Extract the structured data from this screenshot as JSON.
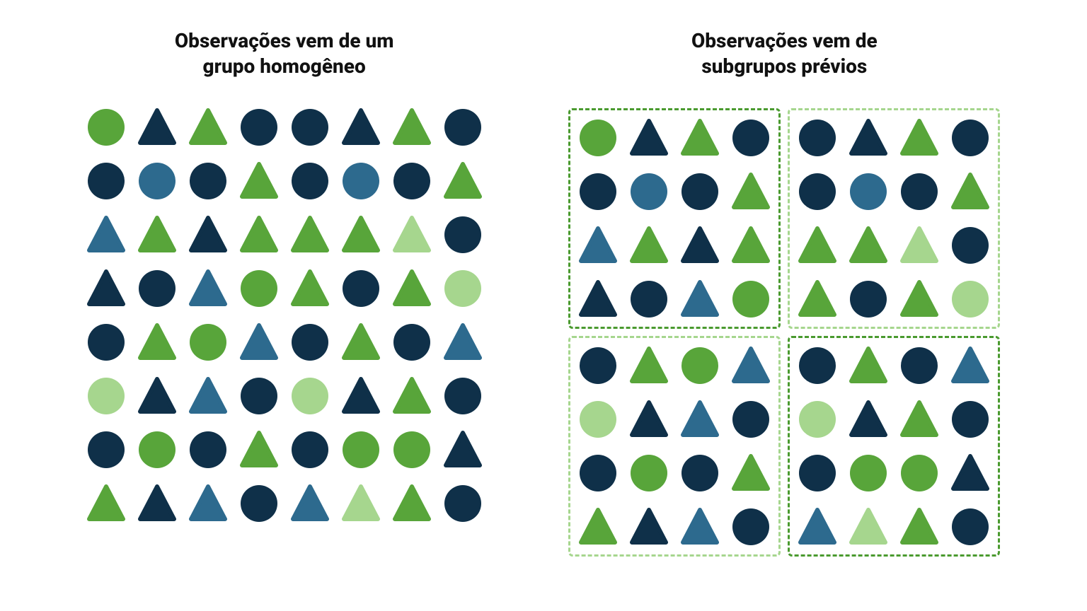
{
  "colors": {
    "dark_navy": "#0f3049",
    "mid_blue": "#2d6a8e",
    "green": "#58a53a",
    "light_green": "#a6d68e"
  },
  "left": {
    "title": "Observações vem de um\ngrupo homogêneo",
    "cols": 8,
    "items": [
      {
        "shape": "circle",
        "color": "green"
      },
      {
        "shape": "triangle",
        "color": "dark_navy"
      },
      {
        "shape": "triangle",
        "color": "green"
      },
      {
        "shape": "circle",
        "color": "dark_navy"
      },
      {
        "shape": "circle",
        "color": "dark_navy"
      },
      {
        "shape": "triangle",
        "color": "dark_navy"
      },
      {
        "shape": "triangle",
        "color": "green"
      },
      {
        "shape": "circle",
        "color": "dark_navy"
      },
      {
        "shape": "circle",
        "color": "dark_navy"
      },
      {
        "shape": "circle",
        "color": "mid_blue"
      },
      {
        "shape": "circle",
        "color": "dark_navy"
      },
      {
        "shape": "triangle",
        "color": "green"
      },
      {
        "shape": "circle",
        "color": "dark_navy"
      },
      {
        "shape": "circle",
        "color": "mid_blue"
      },
      {
        "shape": "circle",
        "color": "dark_navy"
      },
      {
        "shape": "triangle",
        "color": "green"
      },
      {
        "shape": "triangle",
        "color": "mid_blue"
      },
      {
        "shape": "triangle",
        "color": "green"
      },
      {
        "shape": "triangle",
        "color": "dark_navy"
      },
      {
        "shape": "triangle",
        "color": "green"
      },
      {
        "shape": "triangle",
        "color": "green"
      },
      {
        "shape": "triangle",
        "color": "green"
      },
      {
        "shape": "triangle",
        "color": "light_green"
      },
      {
        "shape": "circle",
        "color": "dark_navy"
      },
      {
        "shape": "triangle",
        "color": "dark_navy"
      },
      {
        "shape": "circle",
        "color": "dark_navy"
      },
      {
        "shape": "triangle",
        "color": "mid_blue"
      },
      {
        "shape": "circle",
        "color": "green"
      },
      {
        "shape": "triangle",
        "color": "green"
      },
      {
        "shape": "circle",
        "color": "dark_navy"
      },
      {
        "shape": "triangle",
        "color": "green"
      },
      {
        "shape": "circle",
        "color": "light_green"
      },
      {
        "shape": "circle",
        "color": "dark_navy"
      },
      {
        "shape": "triangle",
        "color": "green"
      },
      {
        "shape": "circle",
        "color": "green"
      },
      {
        "shape": "triangle",
        "color": "mid_blue"
      },
      {
        "shape": "circle",
        "color": "dark_navy"
      },
      {
        "shape": "triangle",
        "color": "green"
      },
      {
        "shape": "circle",
        "color": "dark_navy"
      },
      {
        "shape": "triangle",
        "color": "mid_blue"
      },
      {
        "shape": "circle",
        "color": "light_green"
      },
      {
        "shape": "triangle",
        "color": "dark_navy"
      },
      {
        "shape": "triangle",
        "color": "mid_blue"
      },
      {
        "shape": "circle",
        "color": "dark_navy"
      },
      {
        "shape": "circle",
        "color": "light_green"
      },
      {
        "shape": "triangle",
        "color": "dark_navy"
      },
      {
        "shape": "triangle",
        "color": "green"
      },
      {
        "shape": "circle",
        "color": "dark_navy"
      },
      {
        "shape": "circle",
        "color": "dark_navy"
      },
      {
        "shape": "circle",
        "color": "green"
      },
      {
        "shape": "circle",
        "color": "dark_navy"
      },
      {
        "shape": "triangle",
        "color": "green"
      },
      {
        "shape": "circle",
        "color": "dark_navy"
      },
      {
        "shape": "circle",
        "color": "green"
      },
      {
        "shape": "circle",
        "color": "green"
      },
      {
        "shape": "triangle",
        "color": "dark_navy"
      },
      {
        "shape": "triangle",
        "color": "green"
      },
      {
        "shape": "triangle",
        "color": "dark_navy"
      },
      {
        "shape": "triangle",
        "color": "mid_blue"
      },
      {
        "shape": "circle",
        "color": "dark_navy"
      },
      {
        "shape": "triangle",
        "color": "mid_blue"
      },
      {
        "shape": "triangle",
        "color": "light_green"
      },
      {
        "shape": "triangle",
        "color": "green"
      },
      {
        "shape": "circle",
        "color": "dark_navy"
      }
    ]
  },
  "right": {
    "title": "Observações vem de\nsubgrupos prévios",
    "quad_border_colors": [
      "#4a9a2f",
      "#a6d68e",
      "#a6d68e",
      "#4a9a2f"
    ],
    "quadrants": [
      [
        {
          "shape": "circle",
          "color": "green"
        },
        {
          "shape": "triangle",
          "color": "dark_navy"
        },
        {
          "shape": "triangle",
          "color": "green"
        },
        {
          "shape": "circle",
          "color": "dark_navy"
        },
        {
          "shape": "circle",
          "color": "dark_navy"
        },
        {
          "shape": "circle",
          "color": "mid_blue"
        },
        {
          "shape": "circle",
          "color": "dark_navy"
        },
        {
          "shape": "triangle",
          "color": "green"
        },
        {
          "shape": "triangle",
          "color": "mid_blue"
        },
        {
          "shape": "triangle",
          "color": "green"
        },
        {
          "shape": "triangle",
          "color": "dark_navy"
        },
        {
          "shape": "triangle",
          "color": "green"
        },
        {
          "shape": "triangle",
          "color": "dark_navy"
        },
        {
          "shape": "circle",
          "color": "dark_navy"
        },
        {
          "shape": "triangle",
          "color": "mid_blue"
        },
        {
          "shape": "circle",
          "color": "green"
        }
      ],
      [
        {
          "shape": "circle",
          "color": "dark_navy"
        },
        {
          "shape": "triangle",
          "color": "dark_navy"
        },
        {
          "shape": "triangle",
          "color": "green"
        },
        {
          "shape": "circle",
          "color": "dark_navy"
        },
        {
          "shape": "circle",
          "color": "dark_navy"
        },
        {
          "shape": "circle",
          "color": "mid_blue"
        },
        {
          "shape": "circle",
          "color": "dark_navy"
        },
        {
          "shape": "triangle",
          "color": "green"
        },
        {
          "shape": "triangle",
          "color": "green"
        },
        {
          "shape": "triangle",
          "color": "green"
        },
        {
          "shape": "triangle",
          "color": "light_green"
        },
        {
          "shape": "circle",
          "color": "dark_navy"
        },
        {
          "shape": "triangle",
          "color": "green"
        },
        {
          "shape": "circle",
          "color": "dark_navy"
        },
        {
          "shape": "triangle",
          "color": "green"
        },
        {
          "shape": "circle",
          "color": "light_green"
        }
      ],
      [
        {
          "shape": "circle",
          "color": "dark_navy"
        },
        {
          "shape": "triangle",
          "color": "green"
        },
        {
          "shape": "circle",
          "color": "green"
        },
        {
          "shape": "triangle",
          "color": "mid_blue"
        },
        {
          "shape": "circle",
          "color": "light_green"
        },
        {
          "shape": "triangle",
          "color": "dark_navy"
        },
        {
          "shape": "triangle",
          "color": "mid_blue"
        },
        {
          "shape": "circle",
          "color": "dark_navy"
        },
        {
          "shape": "circle",
          "color": "dark_navy"
        },
        {
          "shape": "circle",
          "color": "green"
        },
        {
          "shape": "circle",
          "color": "dark_navy"
        },
        {
          "shape": "triangle",
          "color": "green"
        },
        {
          "shape": "triangle",
          "color": "green"
        },
        {
          "shape": "triangle",
          "color": "dark_navy"
        },
        {
          "shape": "triangle",
          "color": "mid_blue"
        },
        {
          "shape": "circle",
          "color": "dark_navy"
        }
      ],
      [
        {
          "shape": "circle",
          "color": "dark_navy"
        },
        {
          "shape": "triangle",
          "color": "green"
        },
        {
          "shape": "circle",
          "color": "dark_navy"
        },
        {
          "shape": "triangle",
          "color": "mid_blue"
        },
        {
          "shape": "circle",
          "color": "light_green"
        },
        {
          "shape": "triangle",
          "color": "dark_navy"
        },
        {
          "shape": "triangle",
          "color": "green"
        },
        {
          "shape": "circle",
          "color": "dark_navy"
        },
        {
          "shape": "circle",
          "color": "dark_navy"
        },
        {
          "shape": "circle",
          "color": "green"
        },
        {
          "shape": "circle",
          "color": "green"
        },
        {
          "shape": "triangle",
          "color": "dark_navy"
        },
        {
          "shape": "triangle",
          "color": "mid_blue"
        },
        {
          "shape": "triangle",
          "color": "light_green"
        },
        {
          "shape": "triangle",
          "color": "green"
        },
        {
          "shape": "circle",
          "color": "dark_navy"
        }
      ]
    ]
  },
  "shape_sizes": {
    "circle_radius": 26,
    "triangle_side": 52
  }
}
